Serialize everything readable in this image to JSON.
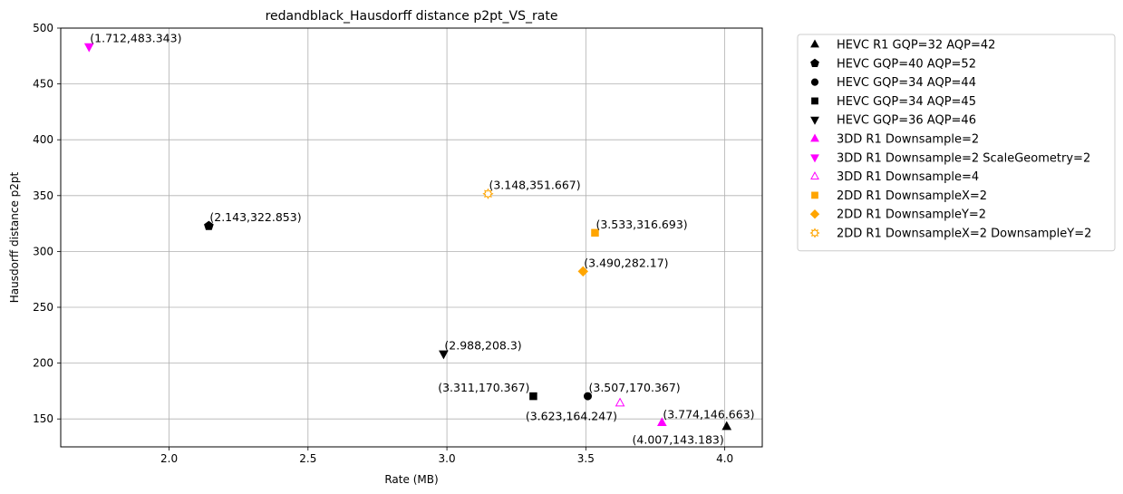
{
  "chart_data": {
    "type": "scatter",
    "title": "redandblack_Hausdorff distance p2pt_VS_rate",
    "xlabel": "Rate (MB)",
    "ylabel": "Hausdorff distance p2pt",
    "xlim": [
      1.61,
      4.135
    ],
    "ylim": [
      125,
      500
    ],
    "xticks": [
      2.0,
      2.5,
      3.0,
      3.5,
      4.0
    ],
    "xtick_labels": [
      "2.0",
      "2.5",
      "3.0",
      "3.5",
      "4.0"
    ],
    "yticks": [
      150,
      200,
      250,
      300,
      350,
      400,
      450,
      500
    ],
    "ytick_labels": [
      "150",
      "200",
      "250",
      "300",
      "350",
      "400",
      "450",
      "500"
    ],
    "grid": true,
    "legend_position": "outside-right",
    "series": [
      {
        "name": "HEVC R1 GQP=32 AQP=42",
        "marker": "triangle-up",
        "filled": true,
        "color": "#000000",
        "points": [
          {
            "x": 4.007,
            "y": 143.183,
            "label": "(4.007,143.183)",
            "label_pos": "below-left"
          }
        ]
      },
      {
        "name": "HEVC GQP=40 AQP=52",
        "marker": "pentagon",
        "filled": true,
        "color": "#000000",
        "points": [
          {
            "x": 2.143,
            "y": 322.853,
            "label": "(2.143,322.853)",
            "label_pos": "above-right"
          }
        ]
      },
      {
        "name": "HEVC GQP=34 AQP=44",
        "marker": "circle",
        "filled": true,
        "color": "#000000",
        "points": [
          {
            "x": 3.507,
            "y": 170.367,
            "label": "(3.507,170.367)",
            "label_pos": "above-right"
          }
        ]
      },
      {
        "name": "HEVC GQP=34 AQP=45",
        "marker": "square",
        "filled": true,
        "color": "#000000",
        "points": [
          {
            "x": 3.311,
            "y": 170.367,
            "label": "(3.311,170.367)",
            "label_pos": "above-left"
          }
        ]
      },
      {
        "name": "HEVC GQP=36 AQP=46",
        "marker": "triangle-down",
        "filled": true,
        "color": "#000000",
        "points": [
          {
            "x": 2.988,
            "y": 208.3,
            "label": "(2.988,208.3)",
            "label_pos": "above-right"
          }
        ]
      },
      {
        "name": "3DD R1 Downsample=2",
        "marker": "triangle-up",
        "filled": true,
        "color": "#ff00ff",
        "points": [
          {
            "x": 3.774,
            "y": 146.663,
            "label": "(3.774,146.663)",
            "label_pos": "above-right"
          }
        ]
      },
      {
        "name": "3DD R1 Downsample=2 ScaleGeometry=2",
        "marker": "triangle-down",
        "filled": true,
        "color": "#ff00ff",
        "points": [
          {
            "x": 1.712,
            "y": 483.343,
            "label": "(1.712,483.343)",
            "label_pos": "above-right"
          }
        ]
      },
      {
        "name": "3DD R1 Downsample=4",
        "marker": "triangle-up",
        "filled": false,
        "color": "#ff00ff",
        "points": [
          {
            "x": 3.623,
            "y": 164.247,
            "label": "(3.623,164.247)",
            "label_pos": "below-left"
          }
        ]
      },
      {
        "name": "2DD R1 DownsampleX=2",
        "marker": "square",
        "filled": true,
        "color": "#ffa500",
        "points": [
          {
            "x": 3.533,
            "y": 316.693,
            "label": "(3.533,316.693)",
            "label_pos": "above-right"
          }
        ]
      },
      {
        "name": "2DD R1 DownsampleY=2",
        "marker": "diamond",
        "filled": true,
        "color": "#ffa500",
        "points": [
          {
            "x": 3.49,
            "y": 282.17,
            "label": "(3.490,282.17)",
            "label_pos": "above-right"
          }
        ]
      },
      {
        "name": "2DD R1 DownsampleX=2 DownsampleY=2",
        "marker": "sun",
        "filled": false,
        "color": "#ffa500",
        "points": [
          {
            "x": 3.148,
            "y": 351.667,
            "label": "(3.148,351.667)",
            "label_pos": "above-right"
          }
        ]
      }
    ]
  }
}
